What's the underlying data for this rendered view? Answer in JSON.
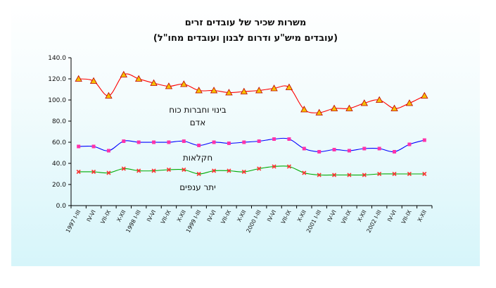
{
  "chart_data": {
    "type": "line",
    "title": "משרות שכיר של עובדים זרים",
    "subtitle": "(עובדים מיש\"ע ודרום לבנון ועובדים מחו\"ל)",
    "ylim": [
      0,
      140
    ],
    "yticks": [
      "0.0",
      "20.0",
      "40.0",
      "60.0",
      "80.0",
      "100.0",
      "120.0",
      "140.0"
    ],
    "grid": false,
    "x_tick_labels": [
      "1997 I-III",
      "IV-VI",
      "VII-IX",
      "X-XII",
      "1998 I-III",
      "IV-VI",
      "VII-IX",
      "X-XII",
      "1999 I-III",
      "IV-VI",
      "VII-IX",
      "X-XII",
      "2000 I-III",
      "IV-VI",
      "VII-IX",
      "X-XII",
      "2001 I-III",
      "IV-VI",
      "VII-IX",
      "X-XII",
      "2002 I-III",
      "IV-VI",
      "VII-IX",
      "X-XII"
    ],
    "series": [
      {
        "name": "בינוי וחברות כוח אדם",
        "label_lines": [
          "בינוי וחברות כוח",
          "אדם"
        ],
        "color": "#ff0000",
        "marker": "triangle",
        "marker_color": "#f5c000",
        "values": [
          120,
          118,
          104,
          124,
          120,
          116,
          113,
          115,
          109,
          109,
          107,
          108,
          109,
          111,
          112,
          91,
          88,
          92,
          92,
          97,
          100,
          92,
          97,
          104
        ]
      },
      {
        "name": "חקלאות",
        "label_lines": [
          "חקלאות"
        ],
        "color": "#0000ff",
        "marker": "square",
        "marker_color": "#ff33aa",
        "values": [
          56,
          56,
          52,
          61,
          60,
          60,
          60,
          61,
          57,
          60,
          59,
          60,
          61,
          63,
          63,
          54,
          51,
          53,
          52,
          54,
          54,
          51,
          58,
          62
        ]
      },
      {
        "name": "יתר ענפים",
        "label_lines": [
          "יתר ענפים"
        ],
        "color": "#00aa00",
        "marker": "x",
        "marker_color": "#ff3333",
        "values": [
          32,
          32,
          31,
          35,
          33,
          33,
          34,
          34,
          30,
          33,
          33,
          32,
          35,
          37,
          37,
          31,
          29,
          29,
          29,
          29,
          30,
          30,
          30,
          30
        ]
      }
    ]
  }
}
